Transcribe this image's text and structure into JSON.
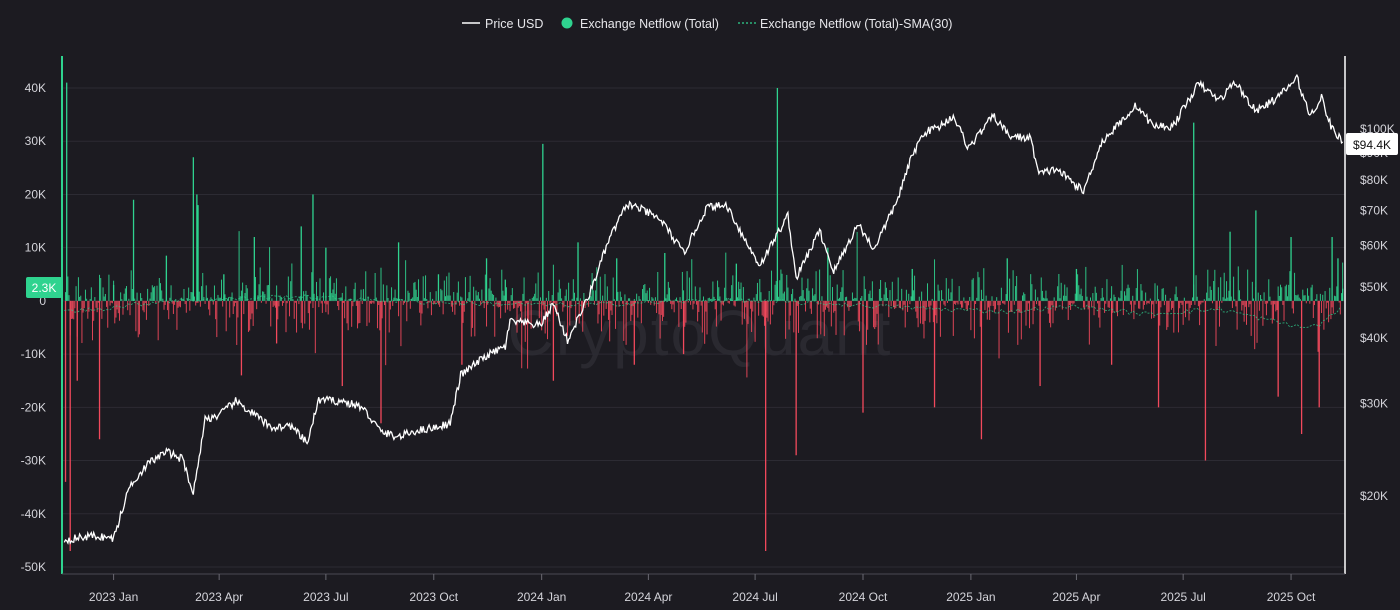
{
  "legend": {
    "price_label": "Price USD",
    "netflow_label": "Exchange Netflow (Total)",
    "sma_label": "Exchange Netflow (Total)-SMA(30)"
  },
  "watermark": "CryptoQuant",
  "colors": {
    "background": "#1c1b21",
    "price": "#ffffff",
    "inflow": "#2fd38f",
    "outflow": "#f2495c",
    "sma": "#2fd38f",
    "cursor": "#2fd38f"
  },
  "chart_data": {
    "type": "bar",
    "title": "",
    "x_labels": [
      "2023 Jan",
      "2023 Apr",
      "2023 Jul",
      "2023 Oct",
      "2024 Jan",
      "2024 Apr",
      "2024 Jul",
      "2024 Oct",
      "2025 Jan",
      "2025 Apr",
      "2025 Jul",
      "2025 Oct"
    ],
    "x_range": [
      "2022-11-18",
      "2025-11-16"
    ],
    "y_left": {
      "ticks": [
        "40K",
        "30K",
        "20K",
        "10K",
        "0",
        "-10K",
        "-20K",
        "-30K",
        "-40K",
        "-50K"
      ],
      "range": [
        -50000,
        40000
      ]
    },
    "y_right": {
      "scale": "log",
      "ticks": [
        "$100K",
        "$90K",
        "$80K",
        "$70K",
        "$60K",
        "$50K",
        "$40K",
        "$30K",
        "$20K"
      ],
      "range": [
        16000,
        125000
      ]
    },
    "current_netflow_label": "2.3K",
    "current_price_label": "$94.4K",
    "series": [
      {
        "name": "Price USD",
        "type": "line",
        "points": [
          [
            "2022-11-20",
            16500
          ],
          [
            "2022-12-15",
            16800
          ],
          [
            "2023-01-01",
            16600
          ],
          [
            "2023-01-15",
            21000
          ],
          [
            "2023-01-31",
            23100
          ],
          [
            "2023-02-15",
            24300
          ],
          [
            "2023-03-01",
            23500
          ],
          [
            "2023-03-10",
            20200
          ],
          [
            "2023-03-20",
            28000
          ],
          [
            "2023-04-01",
            28500
          ],
          [
            "2023-04-15",
            30300
          ],
          [
            "2023-05-01",
            28600
          ],
          [
            "2023-05-15",
            27000
          ],
          [
            "2023-06-01",
            27200
          ],
          [
            "2023-06-15",
            25200
          ],
          [
            "2023-06-25",
            30500
          ],
          [
            "2023-07-15",
            30300
          ],
          [
            "2023-08-01",
            29500
          ],
          [
            "2023-08-17",
            26500
          ],
          [
            "2023-09-01",
            25900
          ],
          [
            "2023-09-15",
            26600
          ],
          [
            "2023-10-01",
            27000
          ],
          [
            "2023-10-15",
            27500
          ],
          [
            "2023-10-24",
            34000
          ],
          [
            "2023-11-15",
            37000
          ],
          [
            "2023-12-01",
            38500
          ],
          [
            "2023-12-05",
            43000
          ],
          [
            "2023-12-31",
            42300
          ],
          [
            "2024-01-11",
            46500
          ],
          [
            "2024-01-23",
            39500
          ],
          [
            "2024-02-10",
            48000
          ],
          [
            "2024-02-28",
            62000
          ],
          [
            "2024-03-14",
            72000
          ],
          [
            "2024-03-25",
            70500
          ],
          [
            "2024-04-12",
            67000
          ],
          [
            "2024-05-01",
            58000
          ],
          [
            "2024-05-21",
            71000
          ],
          [
            "2024-06-07",
            71500
          ],
          [
            "2024-06-24",
            60500
          ],
          [
            "2024-07-05",
            55000
          ],
          [
            "2024-07-29",
            68500
          ],
          [
            "2024-08-05",
            52000
          ],
          [
            "2024-08-25",
            64000
          ],
          [
            "2024-09-06",
            53500
          ],
          [
            "2024-09-27",
            66000
          ],
          [
            "2024-10-10",
            59000
          ],
          [
            "2024-10-29",
            72000
          ],
          [
            "2024-11-12",
            89000
          ],
          [
            "2024-11-22",
            98500
          ],
          [
            "2024-12-05",
            101000
          ],
          [
            "2024-12-17",
            106000
          ],
          [
            "2024-12-30",
            92000
          ],
          [
            "2025-01-20",
            106000
          ],
          [
            "2025-02-03",
            97000
          ],
          [
            "2025-02-21",
            96000
          ],
          [
            "2025-02-28",
            82000
          ],
          [
            "2025-03-15",
            84000
          ],
          [
            "2025-04-07",
            76000
          ],
          [
            "2025-04-22",
            94000
          ],
          [
            "2025-05-22",
            111000
          ],
          [
            "2025-06-05",
            101500
          ],
          [
            "2025-06-22",
            101000
          ],
          [
            "2025-07-14",
            122000
          ],
          [
            "2025-08-01",
            113500
          ],
          [
            "2025-08-14",
            123000
          ],
          [
            "2025-09-01",
            108000
          ],
          [
            "2025-09-20",
            115000
          ],
          [
            "2025-10-06",
            125000
          ],
          [
            "2025-10-17",
            106000
          ],
          [
            "2025-10-27",
            115000
          ],
          [
            "2025-11-04",
            101000
          ],
          [
            "2025-11-14",
            94400
          ]
        ]
      },
      {
        "name": "Exchange Netflow (Total)",
        "type": "bar",
        "spikes": [
          [
            "2022-11-22",
            41000
          ],
          [
            "2022-11-21",
            -34000
          ],
          [
            "2022-11-25",
            -47000
          ],
          [
            "2022-12-01",
            -15000
          ],
          [
            "2022-12-20",
            -26000
          ],
          [
            "2023-01-01",
            3000
          ],
          [
            "2023-01-18",
            19000
          ],
          [
            "2023-02-15",
            8500
          ],
          [
            "2023-03-10",
            27000
          ],
          [
            "2023-03-13",
            20000
          ],
          [
            "2023-03-14",
            18000
          ],
          [
            "2023-04-05",
            5000
          ],
          [
            "2023-04-20",
            -14000
          ],
          [
            "2023-05-01",
            12000
          ],
          [
            "2023-05-20",
            -8000
          ],
          [
            "2023-06-10",
            14000
          ],
          [
            "2023-06-20",
            20000
          ],
          [
            "2023-07-01",
            10000
          ],
          [
            "2023-07-15",
            -16000
          ],
          [
            "2023-08-17",
            -23000
          ],
          [
            "2023-09-01",
            11000
          ],
          [
            "2023-10-05",
            5000
          ],
          [
            "2023-10-25",
            -12000
          ],
          [
            "2023-11-15",
            8000
          ],
          [
            "2023-12-01",
            4000
          ],
          [
            "2024-01-02",
            29500
          ],
          [
            "2024-01-11",
            -15000
          ],
          [
            "2024-02-01",
            11000
          ],
          [
            "2024-03-05",
            8000
          ],
          [
            "2024-03-20",
            -12000
          ],
          [
            "2024-04-15",
            9000
          ],
          [
            "2024-05-01",
            -10000
          ],
          [
            "2024-06-15",
            7000
          ],
          [
            "2024-07-10",
            -47000
          ],
          [
            "2024-07-20",
            40000
          ],
          [
            "2024-08-05",
            -29000
          ],
          [
            "2024-09-01",
            10000
          ],
          [
            "2024-10-01",
            -21000
          ],
          [
            "2024-11-12",
            6000
          ],
          [
            "2024-12-01",
            -20000
          ],
          [
            "2025-01-10",
            -26000
          ],
          [
            "2025-02-01",
            8000
          ],
          [
            "2025-03-01",
            -16000
          ],
          [
            "2025-04-01",
            6000
          ],
          [
            "2025-05-01",
            -12000
          ],
          [
            "2025-06-10",
            -20000
          ],
          [
            "2025-07-10",
            33500
          ],
          [
            "2025-07-20",
            -30000
          ],
          [
            "2025-08-10",
            13000
          ],
          [
            "2025-09-01",
            17000
          ],
          [
            "2025-09-20",
            -18000
          ],
          [
            "2025-10-01",
            12000
          ],
          [
            "2025-10-10",
            -25000
          ],
          [
            "2025-10-25",
            -20000
          ],
          [
            "2025-11-05",
            12000
          ],
          [
            "2025-11-10",
            8000
          ],
          [
            "2025-11-14",
            2300
          ]
        ]
      },
      {
        "name": "Exchange Netflow (Total)-SMA(30)",
        "type": "line",
        "style": "dashed",
        "points": [
          [
            "2022-11-20",
            -2000
          ],
          [
            "2022-12-20",
            -1500
          ],
          [
            "2023-02-15",
            0
          ],
          [
            "2023-06-01",
            800
          ],
          [
            "2023-10-01",
            -300
          ],
          [
            "2024-02-01",
            -800
          ],
          [
            "2024-06-01",
            200
          ],
          [
            "2024-09-01",
            -500
          ],
          [
            "2024-12-01",
            -1500
          ],
          [
            "2025-02-01",
            -2000
          ],
          [
            "2025-04-01",
            -1000
          ],
          [
            "2025-06-01",
            -2500
          ],
          [
            "2025-08-01",
            -1500
          ],
          [
            "2025-10-10",
            -5000
          ],
          [
            "2025-10-25",
            -4500
          ],
          [
            "2025-11-14",
            -1000
          ]
        ]
      }
    ]
  }
}
